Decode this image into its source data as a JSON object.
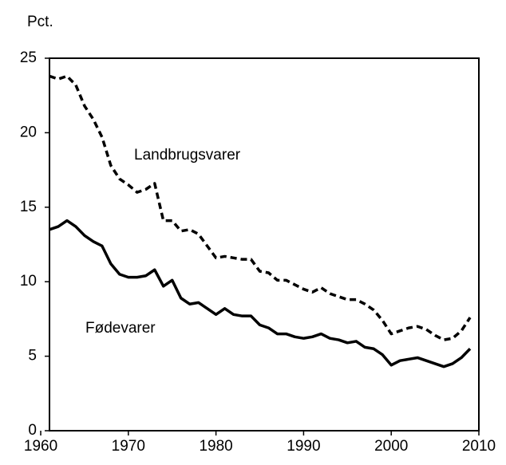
{
  "chart_data": {
    "type": "line",
    "y_label": "Pct.",
    "x": [
      1961,
      1962,
      1963,
      1964,
      1965,
      1966,
      1967,
      1968,
      1969,
      1970,
      1971,
      1972,
      1973,
      1974,
      1975,
      1976,
      1977,
      1978,
      1979,
      1980,
      1981,
      1982,
      1983,
      1984,
      1985,
      1986,
      1987,
      1988,
      1989,
      1990,
      1991,
      1992,
      1993,
      1994,
      1995,
      1996,
      1997,
      1998,
      1999,
      2000,
      2001,
      2002,
      2003,
      2004,
      2005,
      2006,
      2007,
      2008,
      2009
    ],
    "series": [
      {
        "name": "Landbrugsvarer",
        "color": "#000000",
        "line_style": "dashed",
        "values": [
          23.8,
          23.6,
          23.8,
          23.2,
          21.8,
          20.9,
          19.7,
          17.8,
          16.9,
          16.5,
          16.0,
          16.2,
          16.6,
          14.1,
          14.1,
          13.4,
          13.5,
          13.2,
          12.4,
          11.6,
          11.7,
          11.6,
          11.5,
          11.5,
          10.7,
          10.6,
          10.1,
          10.1,
          9.8,
          9.5,
          9.3,
          9.6,
          9.2,
          9.0,
          8.8,
          8.8,
          8.5,
          8.1,
          7.4,
          6.5,
          6.7,
          6.9,
          7.0,
          6.8,
          6.4,
          6.1,
          6.2,
          6.7,
          7.6
        ]
      },
      {
        "name": "Fødevarer",
        "color": "#000000",
        "line_style": "solid",
        "values": [
          13.5,
          13.7,
          14.1,
          13.7,
          13.1,
          12.7,
          12.4,
          11.2,
          10.5,
          10.3,
          10.3,
          10.4,
          10.8,
          9.7,
          10.1,
          8.9,
          8.5,
          8.6,
          8.2,
          7.8,
          8.2,
          7.8,
          7.7,
          7.7,
          7.1,
          6.9,
          6.5,
          6.5,
          6.3,
          6.2,
          6.3,
          6.5,
          6.2,
          6.1,
          5.9,
          6.0,
          5.6,
          5.5,
          5.1,
          4.4,
          4.7,
          4.8,
          4.9,
          4.7,
          4.5,
          4.3,
          4.5,
          4.9,
          5.5
        ]
      }
    ],
    "xlim": [
      1961,
      2010
    ],
    "xticks": [
      1960,
      1970,
      1980,
      1990,
      2000,
      2010
    ],
    "ylim": [
      0,
      25
    ],
    "yticks": [
      0,
      5,
      10,
      15,
      20,
      25
    ]
  }
}
